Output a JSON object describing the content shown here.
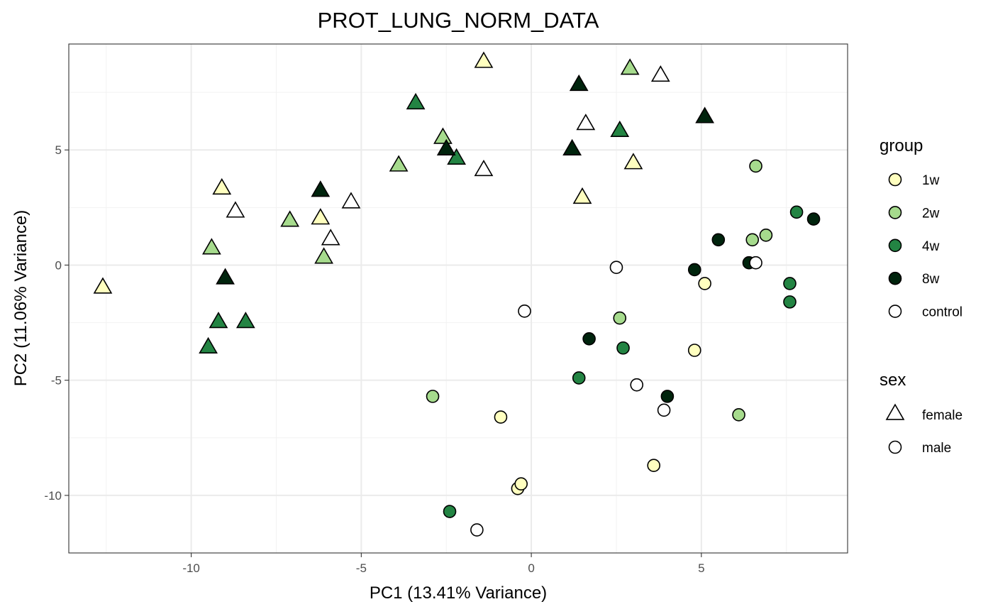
{
  "chart_data": {
    "type": "scatter",
    "title": "PROT_LUNG_NORM_DATA",
    "xlabel": "PC1 (13.41% Variance)",
    "ylabel": "PC2 (11.06% Variance)",
    "xlim": [
      -13.6,
      9.3
    ],
    "ylim": [
      -12.5,
      9.6
    ],
    "x_ticks": [
      -10,
      -5,
      0,
      5
    ],
    "y_ticks": [
      -10,
      -5,
      0,
      5
    ],
    "x_tick_labels": [
      "-10",
      "-5",
      "0",
      "5"
    ],
    "y_tick_labels": [
      "-10",
      "-5",
      "0",
      "5"
    ],
    "grid": true,
    "legend_position": "right",
    "legend": {
      "group": {
        "title": "group",
        "entries": [
          {
            "label": "1w",
            "color": "#FFFFBF"
          },
          {
            "label": "2w",
            "color": "#A6DB8D"
          },
          {
            "label": "4w",
            "color": "#238443"
          },
          {
            "label": "8w",
            "color": "#00240D"
          },
          {
            "label": "control",
            "color": "#FFFFFF"
          }
        ]
      },
      "sex": {
        "title": "sex",
        "entries": [
          {
            "label": "female",
            "shape": "triangle"
          },
          {
            "label": "male",
            "shape": "circle"
          }
        ]
      }
    },
    "points": [
      {
        "x": -12.6,
        "y": -1.0,
        "group": "1w",
        "sex": "female"
      },
      {
        "x": -9.1,
        "y": 3.3,
        "group": "1w",
        "sex": "female"
      },
      {
        "x": -6.2,
        "y": 2.0,
        "group": "1w",
        "sex": "female"
      },
      {
        "x": -1.4,
        "y": 8.8,
        "group": "1w",
        "sex": "female"
      },
      {
        "x": 3.0,
        "y": 4.4,
        "group": "1w",
        "sex": "female"
      },
      {
        "x": 1.5,
        "y": 2.9,
        "group": "1w",
        "sex": "female"
      },
      {
        "x": -9.4,
        "y": 0.7,
        "group": "2w",
        "sex": "female"
      },
      {
        "x": -7.1,
        "y": 1.9,
        "group": "2w",
        "sex": "female"
      },
      {
        "x": -6.1,
        "y": 0.3,
        "group": "2w",
        "sex": "female"
      },
      {
        "x": -3.9,
        "y": 4.3,
        "group": "2w",
        "sex": "female"
      },
      {
        "x": -2.6,
        "y": 5.5,
        "group": "2w",
        "sex": "female"
      },
      {
        "x": 2.9,
        "y": 8.5,
        "group": "2w",
        "sex": "female"
      },
      {
        "x": -9.5,
        "y": -3.6,
        "group": "4w",
        "sex": "female"
      },
      {
        "x": -9.2,
        "y": -2.5,
        "group": "4w",
        "sex": "female"
      },
      {
        "x": -8.4,
        "y": -2.5,
        "group": "4w",
        "sex": "female"
      },
      {
        "x": -3.4,
        "y": 7.0,
        "group": "4w",
        "sex": "female"
      },
      {
        "x": -2.2,
        "y": 4.6,
        "group": "4w",
        "sex": "female"
      },
      {
        "x": 2.6,
        "y": 5.8,
        "group": "4w",
        "sex": "female"
      },
      {
        "x": -9.0,
        "y": -0.6,
        "group": "8w",
        "sex": "female"
      },
      {
        "x": -6.2,
        "y": 3.2,
        "group": "8w",
        "sex": "female"
      },
      {
        "x": -2.5,
        "y": 5.0,
        "group": "8w",
        "sex": "female"
      },
      {
        "x": 1.4,
        "y": 7.8,
        "group": "8w",
        "sex": "female"
      },
      {
        "x": 1.2,
        "y": 5.0,
        "group": "8w",
        "sex": "female"
      },
      {
        "x": 5.1,
        "y": 6.4,
        "group": "8w",
        "sex": "female"
      },
      {
        "x": -8.7,
        "y": 2.3,
        "group": "control",
        "sex": "female"
      },
      {
        "x": -5.3,
        "y": 2.7,
        "group": "control",
        "sex": "female"
      },
      {
        "x": -5.9,
        "y": 1.1,
        "group": "control",
        "sex": "female"
      },
      {
        "x": -1.4,
        "y": 4.1,
        "group": "control",
        "sex": "female"
      },
      {
        "x": 1.6,
        "y": 6.1,
        "group": "control",
        "sex": "female"
      },
      {
        "x": 3.8,
        "y": 8.2,
        "group": "control",
        "sex": "female"
      },
      {
        "x": -0.9,
        "y": -6.6,
        "group": "1w",
        "sex": "male"
      },
      {
        "x": -0.4,
        "y": -9.7,
        "group": "1w",
        "sex": "male"
      },
      {
        "x": -0.3,
        "y": -9.5,
        "group": "1w",
        "sex": "male"
      },
      {
        "x": 3.6,
        "y": -8.7,
        "group": "1w",
        "sex": "male"
      },
      {
        "x": 4.8,
        "y": -3.7,
        "group": "1w",
        "sex": "male"
      },
      {
        "x": 5.1,
        "y": -0.8,
        "group": "1w",
        "sex": "male"
      },
      {
        "x": -2.9,
        "y": -5.7,
        "group": "2w",
        "sex": "male"
      },
      {
        "x": 2.6,
        "y": -2.3,
        "group": "2w",
        "sex": "male"
      },
      {
        "x": 6.1,
        "y": -6.5,
        "group": "2w",
        "sex": "male"
      },
      {
        "x": 6.5,
        "y": 1.1,
        "group": "2w",
        "sex": "male"
      },
      {
        "x": 6.6,
        "y": 4.3,
        "group": "2w",
        "sex": "male"
      },
      {
        "x": 6.9,
        "y": 1.3,
        "group": "2w",
        "sex": "male"
      },
      {
        "x": -2.4,
        "y": -10.7,
        "group": "4w",
        "sex": "male"
      },
      {
        "x": 1.4,
        "y": -4.9,
        "group": "4w",
        "sex": "male"
      },
      {
        "x": 2.7,
        "y": -3.6,
        "group": "4w",
        "sex": "male"
      },
      {
        "x": 7.6,
        "y": -0.8,
        "group": "4w",
        "sex": "male"
      },
      {
        "x": 7.6,
        "y": -1.6,
        "group": "4w",
        "sex": "male"
      },
      {
        "x": 7.8,
        "y": 2.3,
        "group": "4w",
        "sex": "male"
      },
      {
        "x": 1.7,
        "y": -3.2,
        "group": "8w",
        "sex": "male"
      },
      {
        "x": 4.0,
        "y": -5.7,
        "group": "8w",
        "sex": "male"
      },
      {
        "x": 4.8,
        "y": -0.2,
        "group": "8w",
        "sex": "male"
      },
      {
        "x": 5.5,
        "y": 1.1,
        "group": "8w",
        "sex": "male"
      },
      {
        "x": 6.4,
        "y": 0.1,
        "group": "8w",
        "sex": "male"
      },
      {
        "x": 8.3,
        "y": 2.0,
        "group": "8w",
        "sex": "male"
      },
      {
        "x": -1.6,
        "y": -11.5,
        "group": "control",
        "sex": "male"
      },
      {
        "x": -0.2,
        "y": -2.0,
        "group": "control",
        "sex": "male"
      },
      {
        "x": 2.5,
        "y": -0.1,
        "group": "control",
        "sex": "male"
      },
      {
        "x": 3.1,
        "y": -5.2,
        "group": "control",
        "sex": "male"
      },
      {
        "x": 3.9,
        "y": -6.3,
        "group": "control",
        "sex": "male"
      },
      {
        "x": 6.6,
        "y": 0.1,
        "group": "control",
        "sex": "male"
      }
    ]
  }
}
